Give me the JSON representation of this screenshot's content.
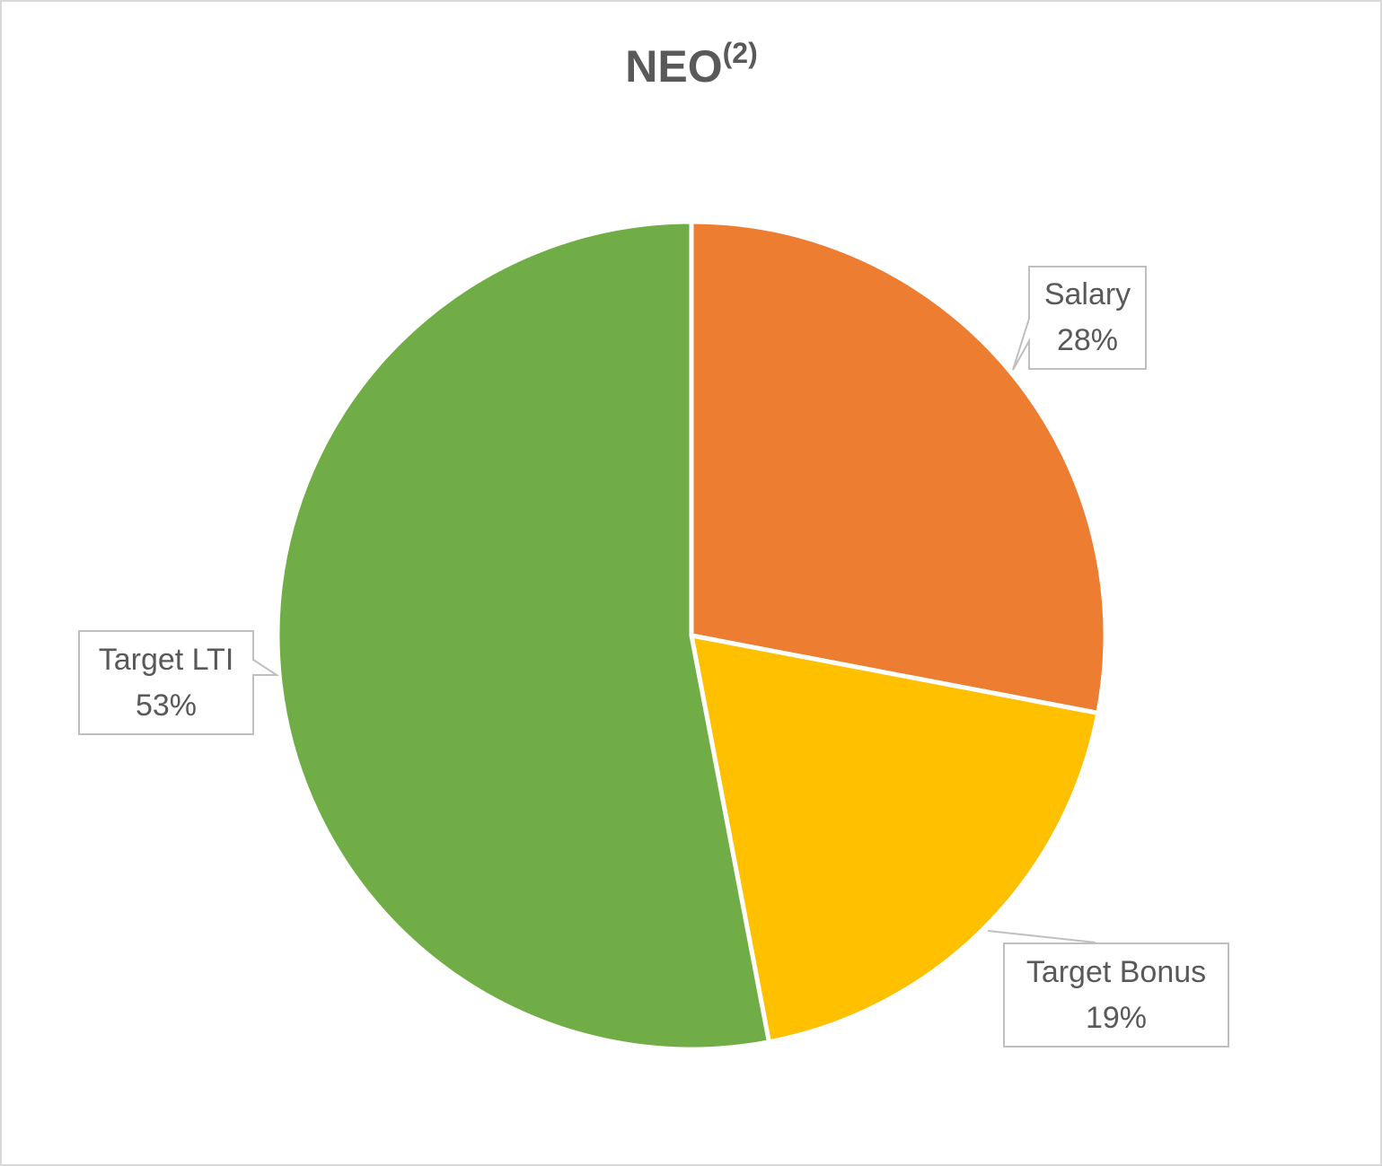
{
  "chart_data": {
    "type": "pie",
    "title": "NEO",
    "title_superscript": "(2)",
    "categories": [
      "Salary",
      "Target Bonus",
      "Target LTI"
    ],
    "values": [
      28,
      19,
      53
    ],
    "value_labels": [
      "28%",
      "19%",
      "53%"
    ],
    "colors": [
      "#ed7d31",
      "#ffc000",
      "#70ad47"
    ]
  }
}
